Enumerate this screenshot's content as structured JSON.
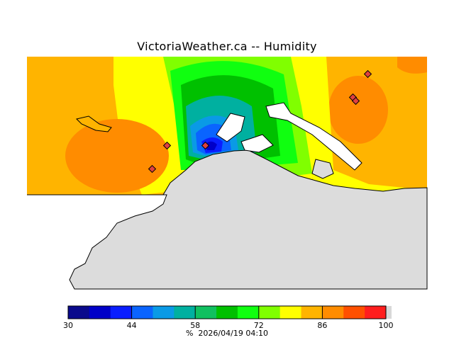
{
  "title": "VictoriaWeather.ca -- Humidity",
  "footer": {
    "unit": "%",
    "timestamp": "2026/04/19 04:10"
  },
  "legend": {
    "min": 30,
    "max": 100,
    "tick_labels": [
      "30",
      "44",
      "58",
      "72",
      "86",
      "100"
    ],
    "colors": [
      "#0a0a8c",
      "#0000c8",
      "#0a1eff",
      "#0a64ff",
      "#0a9ae6",
      "#00b0a0",
      "#10c060",
      "#00c000",
      "#10ff10",
      "#80ff00",
      "#ffff00",
      "#ffb400",
      "#ff8c00",
      "#ff5000",
      "#ff1e1e",
      "#d8d8d8"
    ]
  },
  "map": {
    "land_color": "#dcdcdc",
    "coastline_color": "#000000",
    "station_color": "#e04040"
  }
}
